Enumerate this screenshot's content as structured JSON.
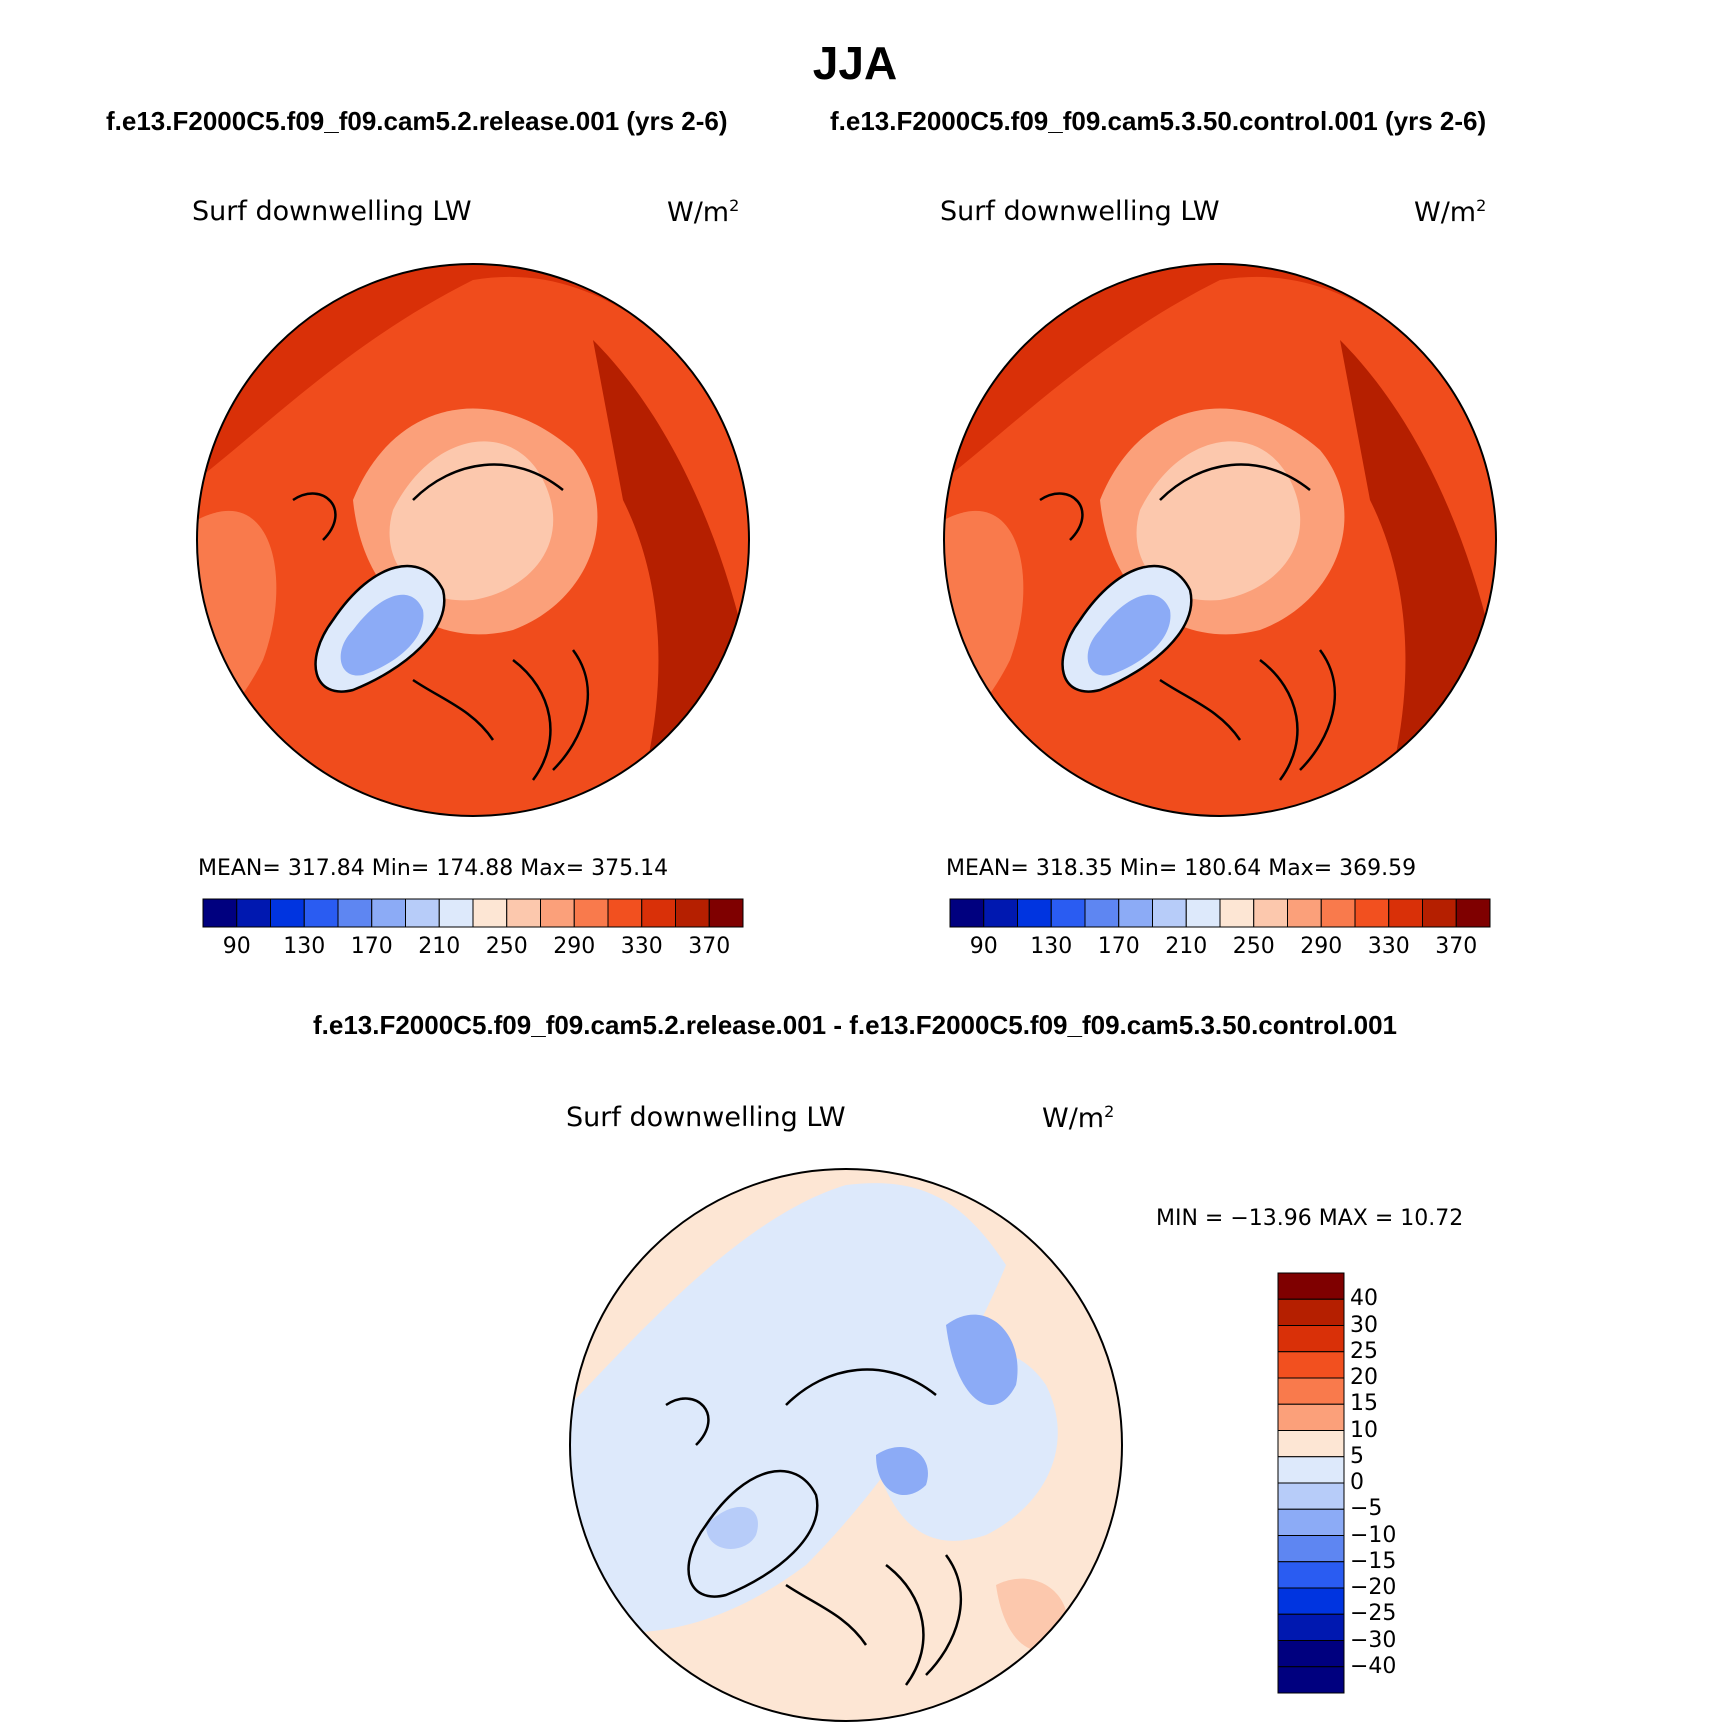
{
  "title": "JJA",
  "case_titles": [
    "f.e13.F2000C5.f09_f09.cam5.2.release.001 (yrs 2-6)",
    "f.e13.F2000C5.f09_f09.cam5.3.50.control.001 (yrs 2-6)"
  ],
  "diff_title": "f.e13.F2000C5.f09_f09.cam5.2.release.001 - f.e13.F2000C5.f09_f09.cam5.3.50.control.001",
  "panels": [
    {
      "variable": "Surf downwelling LW",
      "units": "W/m",
      "units_sup": "2",
      "stats": "MEAN= 317.84   Min= 174.88   Max= 375.14"
    },
    {
      "variable": "Surf downwelling LW",
      "units": "W/m",
      "units_sup": "2",
      "stats": "MEAN= 318.35   Min= 180.64   Max= 369.59"
    },
    {
      "variable": "Surf downwelling LW",
      "units": "W/m",
      "units_sup": "2",
      "stats": "MIN = −13.96  MAX =   10.72"
    }
  ],
  "abs_colorbar": {
    "colors": [
      "#00007f",
      "#0018b0",
      "#0034e0",
      "#2a5cf2",
      "#5e86f2",
      "#8cabf6",
      "#b7ccf9",
      "#dde9fb",
      "#fde6d4",
      "#fcc8ad",
      "#fba07a",
      "#f97a4c",
      "#f2501f",
      "#d93008",
      "#b51f00",
      "#7f0000"
    ],
    "labels": [
      "90",
      "130",
      "170",
      "210",
      "250",
      "290",
      "330",
      "370"
    ]
  },
  "diff_colorbar": {
    "colors": [
      "#7f0000",
      "#b51f00",
      "#d93008",
      "#f2501f",
      "#f97a4c",
      "#fba07a",
      "#fde6d4",
      "#dde9fb",
      "#b7ccf9",
      "#8cabf6",
      "#5e86f2",
      "#2a5cf2",
      "#0034e0",
      "#0018b0",
      "#00007f"
    ],
    "labels": [
      "40",
      "30",
      "25",
      "20",
      "15",
      "10",
      "5",
      "0",
      "−5",
      "−10",
      "−15",
      "−20",
      "−25",
      "−30",
      "−40"
    ]
  }
}
